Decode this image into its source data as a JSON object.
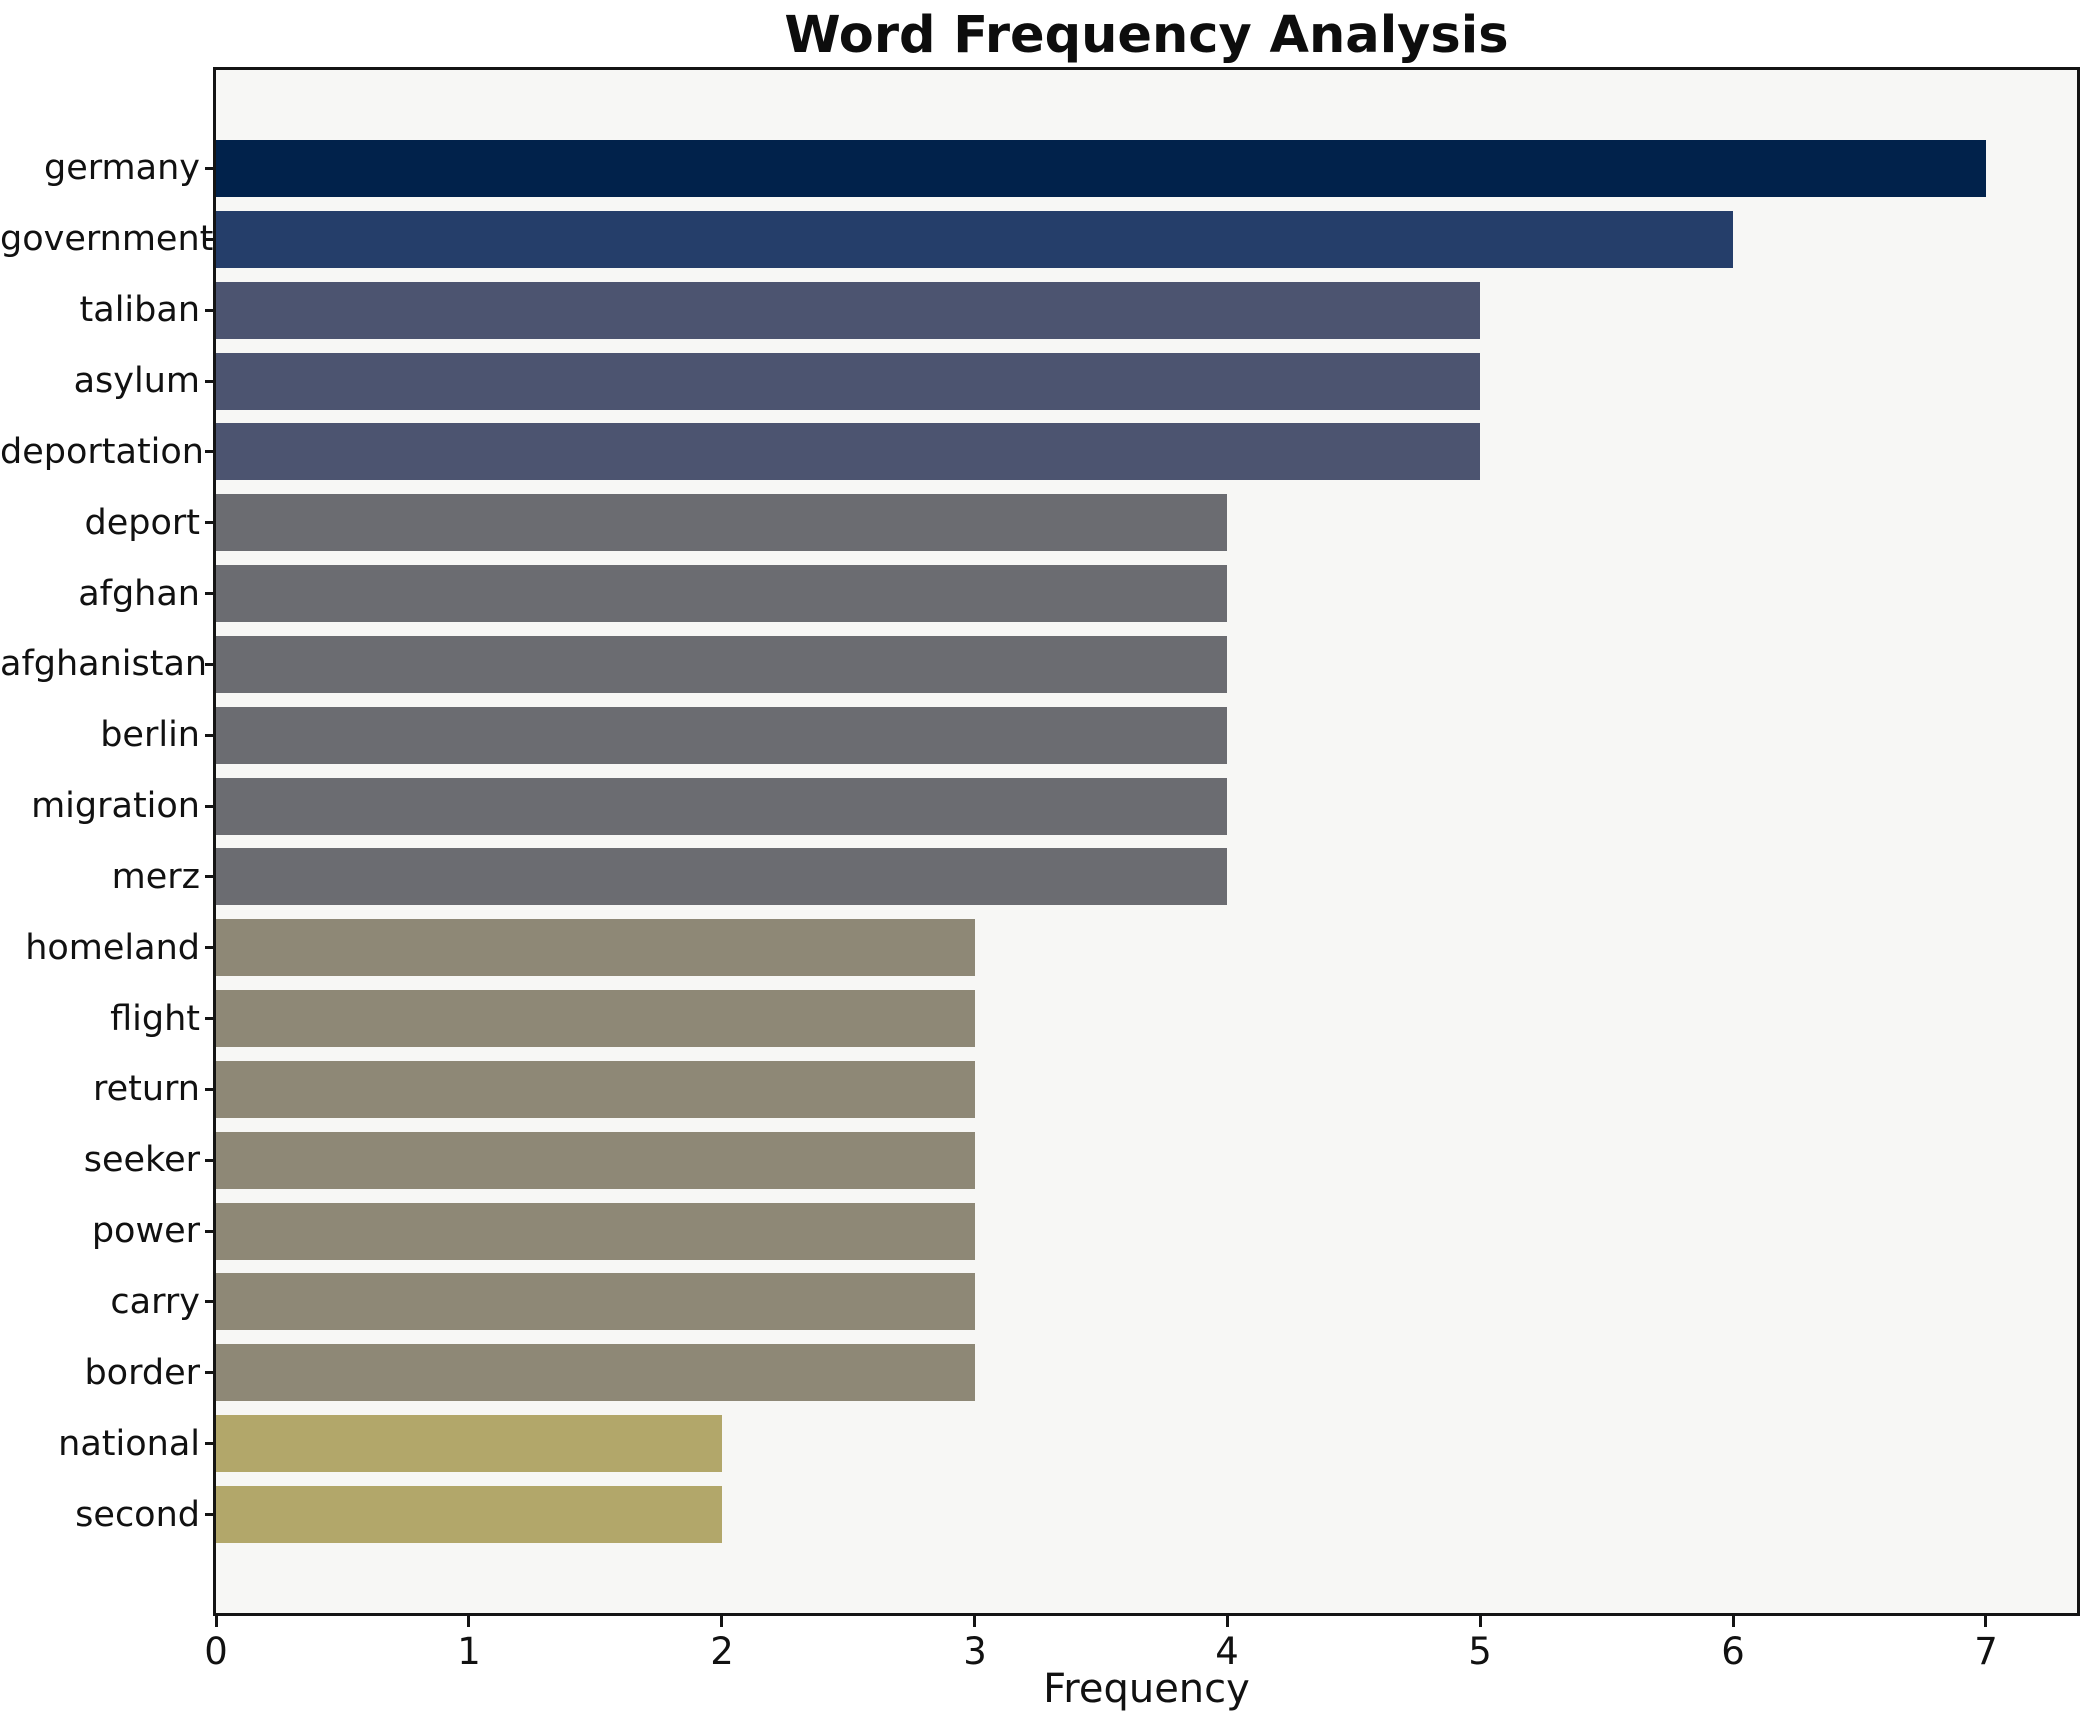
{
  "chart_data": {
    "type": "bar",
    "orientation": "horizontal",
    "title": "Word Frequency Analysis",
    "xlabel": "Frequency",
    "ylabel": "",
    "categories": [
      "germany",
      "government",
      "taliban",
      "asylum",
      "deportation",
      "deport",
      "afghan",
      "afghanistan",
      "berlin",
      "migration",
      "merz",
      "homeland",
      "flight",
      "return",
      "seeker",
      "power",
      "carry",
      "border",
      "national",
      "second"
    ],
    "values": [
      7,
      6,
      5,
      5,
      5,
      4,
      4,
      4,
      4,
      4,
      4,
      3,
      3,
      3,
      3,
      3,
      3,
      3,
      2,
      2
    ],
    "xticks": [
      0,
      1,
      2,
      3,
      4,
      5,
      6,
      7
    ],
    "xlim": [
      0,
      7.36
    ],
    "grid": false,
    "legend": null,
    "colors_by_value": {
      "7": "#01224b",
      "6": "#253e6a",
      "5": "#4c5470",
      "4": "#6b6c71",
      "3": "#8e8876",
      "2": "#b2a76a"
    },
    "plot_background": "#f7f7f5",
    "figure_background": "#ffffff",
    "spine_color": "#141414",
    "text_color": "#111111"
  }
}
